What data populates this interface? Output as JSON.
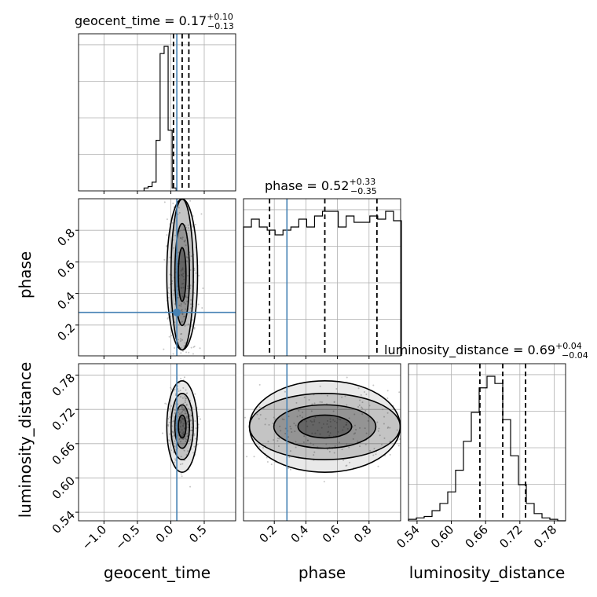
{
  "chart_data": {
    "type": "corner",
    "parameters": [
      "geocent_time",
      "phase",
      "luminosity_distance"
    ],
    "axis_labels": {
      "geocent_time": "geocent_time",
      "phase": "phase",
      "luminosity_distance": "luminosity_distance"
    },
    "titles": [
      {
        "param": "geocent_time",
        "text": "geocent_time = 0.17",
        "sup": "+0.10",
        "sub": "−0.13"
      },
      {
        "param": "phase",
        "text": "phase = 0.52",
        "sup": "+0.33",
        "sub": "−0.35"
      },
      {
        "param": "luminosity_distance",
        "text": "luminosity_distance = 0.69",
        "sup": "+0.04",
        "sub": "−0.04"
      }
    ],
    "ranges": {
      "geocent_time": [
        -1.38,
        0.97
      ],
      "phase": [
        0.005,
        1.0
      ],
      "luminosity_distance": [
        0.525,
        0.8
      ]
    },
    "ticks": {
      "geocent_time": [
        {
          "v": -1.0,
          "label": "−1.0"
        },
        {
          "v": -0.5,
          "label": "−0.5"
        },
        {
          "v": 0.0,
          "label": "0.0"
        },
        {
          "v": 0.5,
          "label": "0.5"
        }
      ],
      "phase": [
        {
          "v": 0.2,
          "label": "0.2"
        },
        {
          "v": 0.4,
          "label": "0.4"
        },
        {
          "v": 0.6,
          "label": "0.6"
        },
        {
          "v": 0.8,
          "label": "0.8"
        }
      ],
      "luminosity_distance": [
        {
          "v": 0.54,
          "label": "0.54"
        },
        {
          "v": 0.6,
          "label": "0.60"
        },
        {
          "v": 0.66,
          "label": "0.66"
        },
        {
          "v": 0.72,
          "label": "0.72"
        },
        {
          "v": 0.78,
          "label": "0.78"
        }
      ]
    },
    "truths": {
      "geocent_time": 0.09,
      "phase": 0.28,
      "luminosity_distance": null
    },
    "quantiles": {
      "geocent_time": [
        0.04,
        0.17,
        0.27
      ],
      "phase": [
        0.17,
        0.52,
        0.85
      ],
      "luminosity_distance": [
        0.65,
        0.69,
        0.73
      ]
    },
    "histograms": {
      "geocent_time": {
        "start": -0.4,
        "step": 0.06,
        "counts": [
          0.02,
          0.03,
          0.06,
          0.35,
          0.95,
          1.0,
          0.42,
          0.02
        ]
      },
      "phase": {
        "start": 0.005,
        "step": 0.05,
        "counts": [
          0.82,
          0.87,
          0.82,
          0.8,
          0.77,
          0.8,
          0.82,
          0.87,
          0.82,
          0.89,
          0.92,
          0.92,
          0.82,
          0.89,
          0.85,
          0.85,
          0.89,
          0.87,
          0.92,
          0.86
        ]
      },
      "luminosity_distance": {
        "start": 0.525,
        "step": 0.01375,
        "counts": [
          0.01,
          0.02,
          0.03,
          0.07,
          0.12,
          0.2,
          0.35,
          0.55,
          0.75,
          0.92,
          1.0,
          0.95,
          0.7,
          0.45,
          0.25,
          0.12,
          0.05,
          0.02,
          0.01,
          0.0
        ]
      }
    },
    "grid": true,
    "truth_color": "#4682b4"
  }
}
